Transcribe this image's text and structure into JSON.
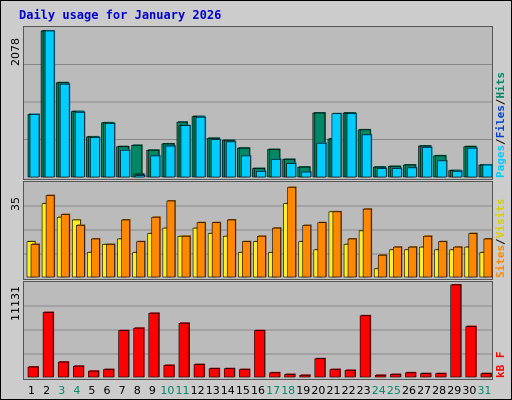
{
  "title": "Daily usage for January 2026",
  "colors": {
    "pages": "#00ccff",
    "files": "#008866",
    "hits": "#008866",
    "visits": "#ff8800",
    "sites": "#ffee22",
    "kbytes": "#ff0000",
    "weekend_label": "#008866",
    "weekday_label": "#000000",
    "grid": "#888888"
  },
  "chart_data": [
    {
      "type": "bar",
      "name": "hits-files-pages",
      "categories": [
        "1",
        "2",
        "3",
        "4",
        "5",
        "6",
        "7",
        "8",
        "9",
        "10",
        "11",
        "12",
        "13",
        "14",
        "15",
        "16",
        "17",
        "18",
        "19",
        "20",
        "21",
        "22",
        "23",
        "24",
        "25",
        "26",
        "27",
        "28",
        "29",
        "30",
        "31"
      ],
      "ylim": [
        0,
        2078
      ],
      "ymax_label": "2078",
      "legend": [
        "Pages",
        "/",
        "Files",
        "/",
        "Hits"
      ],
      "series": [
        {
          "name": "Hits",
          "values": [
            0,
            2078,
            1340,
            930,
            570,
            770,
            430,
            450,
            380,
            470,
            780,
            860,
            550,
            520,
            410,
            120,
            390,
            250,
            140,
            910,
            540,
            910,
            670,
            140,
            150,
            170,
            440,
            300,
            90,
            430,
            170
          ]
        },
        {
          "name": "Files",
          "values": [
            890,
            2078,
            1340,
            930,
            570,
            770,
            430,
            40,
            380,
            470,
            730,
            860,
            550,
            520,
            410,
            120,
            390,
            250,
            140,
            910,
            540,
            910,
            670,
            140,
            150,
            170,
            440,
            300,
            90,
            430,
            170
          ]
        },
        {
          "name": "Pages",
          "values": [
            890,
            2078,
            1320,
            920,
            560,
            760,
            380,
            20,
            300,
            440,
            730,
            850,
            530,
            500,
            300,
            80,
            250,
            190,
            70,
            480,
            900,
            900,
            600,
            120,
            120,
            130,
            420,
            230,
            80,
            410,
            170
          ]
        }
      ]
    },
    {
      "type": "bar",
      "name": "visits-sites",
      "categories": [
        "1",
        "2",
        "3",
        "4",
        "5",
        "6",
        "7",
        "8",
        "9",
        "10",
        "11",
        "12",
        "13",
        "14",
        "15",
        "16",
        "17",
        "18",
        "19",
        "20",
        "21",
        "22",
        "23",
        "24",
        "25",
        "26",
        "27",
        "28",
        "29",
        "30",
        "31"
      ],
      "ylim": [
        0,
        35
      ],
      "ymax_label": "35",
      "legend": [
        "Sites",
        "/",
        "Visits"
      ],
      "series": [
        {
          "name": "Sites",
          "values": [
            13,
            27,
            22,
            21,
            9,
            12,
            14,
            9,
            16,
            18,
            15,
            18,
            16,
            15,
            9,
            13,
            9,
            27,
            13,
            10,
            24,
            12,
            17,
            3,
            10,
            10,
            11,
            10,
            10,
            11,
            9
          ]
        },
        {
          "name": "Visits",
          "values": [
            12,
            30,
            23,
            19,
            14,
            12,
            21,
            13,
            22,
            28,
            15,
            20,
            20,
            21,
            13,
            15,
            18,
            33,
            19,
            20,
            24,
            14,
            25,
            8,
            11,
            11,
            15,
            13,
            11,
            16,
            14
          ]
        }
      ]
    },
    {
      "type": "bar",
      "name": "kbytes",
      "categories": [
        "1",
        "2",
        "3",
        "4",
        "5",
        "6",
        "7",
        "8",
        "9",
        "10",
        "11",
        "12",
        "13",
        "14",
        "15",
        "16",
        "17",
        "18",
        "19",
        "20",
        "21",
        "22",
        "23",
        "24",
        "25",
        "26",
        "27",
        "28",
        "29",
        "30",
        "31"
      ],
      "ylim": [
        0,
        11131
      ],
      "ymax_label": "11131",
      "legend": [
        "kB",
        "F"
      ],
      "series": [
        {
          "name": "kB F",
          "values": [
            1200,
            7800,
            1800,
            1300,
            700,
            900,
            5600,
            5900,
            7700,
            1400,
            6500,
            1500,
            1000,
            1000,
            900,
            5600,
            500,
            300,
            200,
            2200,
            900,
            800,
            7400,
            200,
            300,
            500,
            400,
            400,
            11131,
            6100,
            400
          ]
        }
      ]
    }
  ],
  "x_axis": {
    "labels": [
      "1",
      "2",
      "3",
      "4",
      "5",
      "6",
      "7",
      "8",
      "9",
      "10",
      "11",
      "12",
      "13",
      "14",
      "15",
      "16",
      "17",
      "18",
      "19",
      "20",
      "21",
      "22",
      "23",
      "24",
      "25",
      "26",
      "27",
      "28",
      "29",
      "30",
      "31"
    ],
    "weekend": [
      false,
      false,
      true,
      true,
      false,
      false,
      false,
      false,
      false,
      true,
      true,
      false,
      false,
      false,
      false,
      false,
      true,
      true,
      false,
      false,
      false,
      false,
      false,
      true,
      true,
      false,
      false,
      false,
      false,
      false,
      true
    ]
  }
}
